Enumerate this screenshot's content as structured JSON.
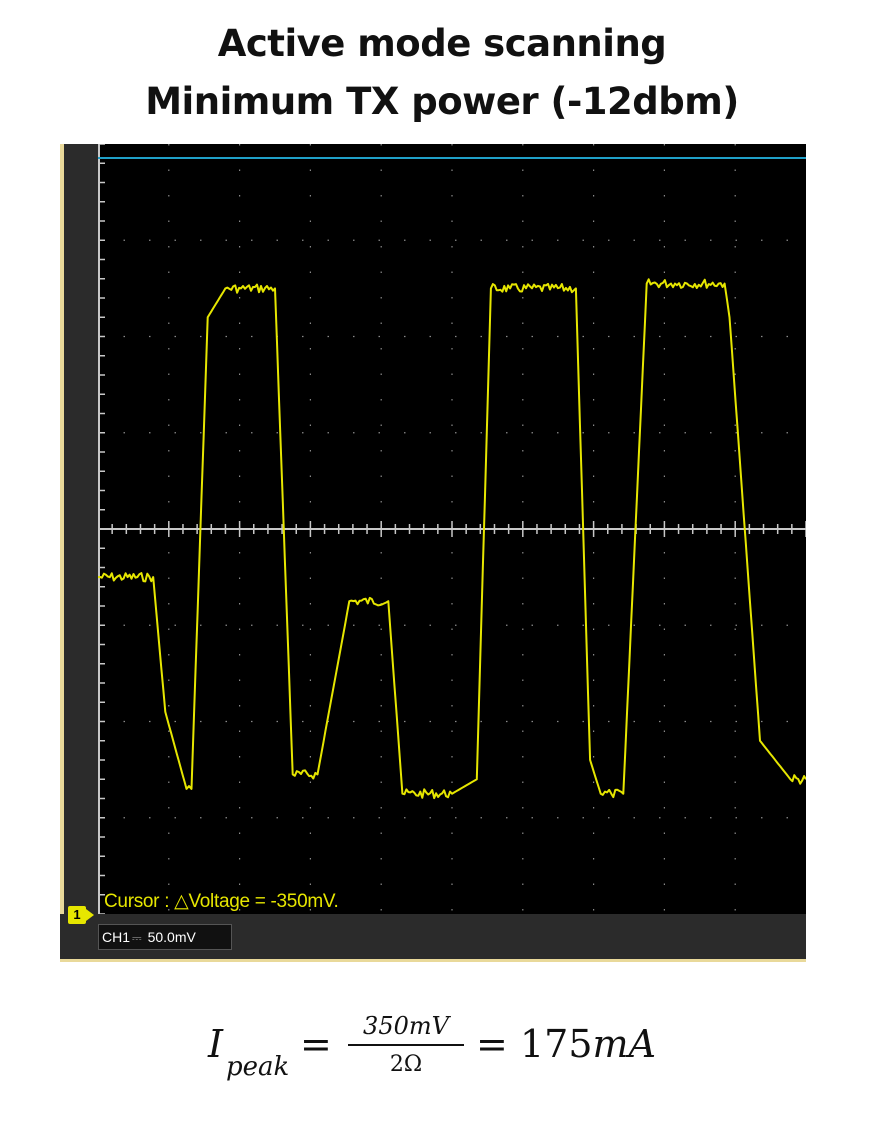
{
  "title_line1": "Active mode scanning",
  "title_line2": "Minimum TX power (-12dbm)",
  "colors": {
    "trace": "#e6e600",
    "screen_bg": "#000000",
    "reference_line": "#1fa0c8",
    "grid": "#8a8a8a",
    "frame": "#2b2b2b"
  },
  "scope": {
    "cursor_readout": "Cursor : △Voltage = -350mV.",
    "channel_marker": "1",
    "channel_name": "CH1",
    "channel_coupling": "⎓",
    "channel_scale": "50.0mV"
  },
  "chart_data": {
    "type": "line",
    "title": "",
    "xlabel": "",
    "ylabel": "",
    "divisions": {
      "x": 10,
      "y": 8
    },
    "ylim": [
      -4,
      4
    ],
    "xlim": [
      0,
      10
    ],
    "grid": true,
    "series": [
      {
        "name": "",
        "x": [
          0,
          0.78,
          0.95,
          1.25,
          1.32,
          1.55,
          1.8,
          2.02,
          2.5,
          2.75,
          3.1,
          3.55,
          4.1,
          4.3,
          5.0,
          5.35,
          5.55,
          5.82,
          6.75,
          6.95,
          7.1,
          7.25,
          7.42,
          7.75,
          8.15,
          8.85,
          8.92,
          9.35,
          9.78,
          10.0
        ],
        "y": [
          -0.5,
          -0.5,
          -1.9,
          -2.7,
          -2.7,
          2.2,
          2.5,
          2.5,
          2.5,
          -2.55,
          -2.55,
          -0.75,
          -0.75,
          -2.75,
          -2.75,
          -2.6,
          2.5,
          2.5,
          2.5,
          -2.4,
          -2.75,
          -2.75,
          -2.75,
          2.55,
          2.55,
          2.55,
          2.2,
          -2.2,
          -2.6,
          -2.6
        ]
      }
    ],
    "cursor_delta_voltage_mV": -350
  },
  "formula": {
    "lhs": "I",
    "lhs_sub": "peak",
    "equals": "=",
    "numerator": "350mV",
    "denominator": "2Ω",
    "result_number": "175",
    "result_unit": "mA"
  }
}
